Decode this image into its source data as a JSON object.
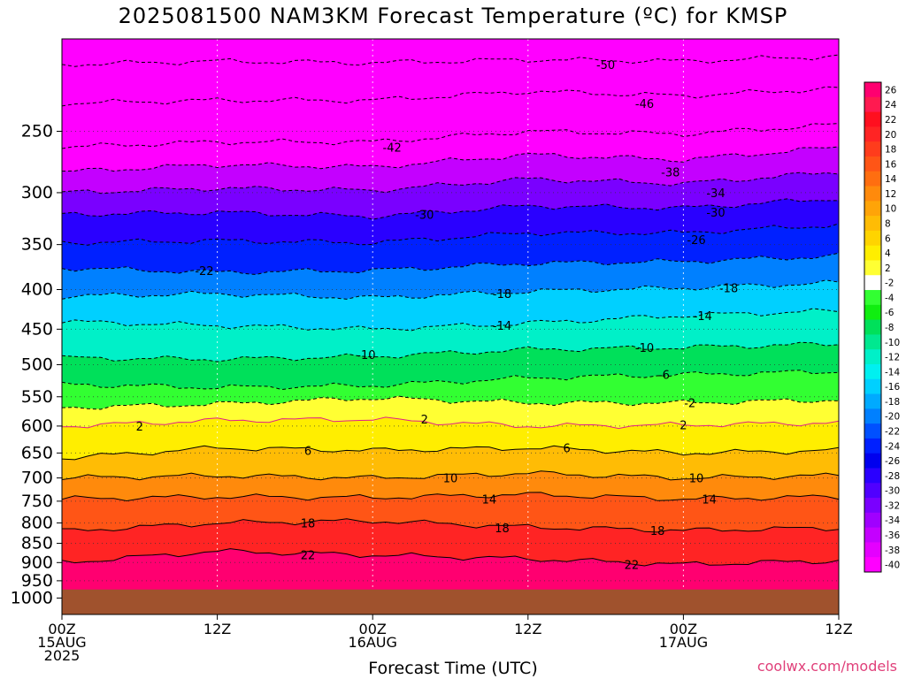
{
  "title": "2025081500 NAM3KM Forecast Temperature (ºC) for KMSP",
  "credit": "coolwx.com/models",
  "chart_data": {
    "type": "heatmap",
    "title": "2025081500 NAM3KM Forecast Temperature (ºC) for KMSP",
    "xlabel": "Forecast Time (UTC)",
    "ylabel": "",
    "y_scale": "log-pressure",
    "ylim": [
      1050,
      190
    ],
    "y_ticks": [
      250,
      300,
      350,
      400,
      450,
      500,
      550,
      600,
      650,
      700,
      750,
      800,
      850,
      900,
      950,
      1000
    ],
    "x_hours_range": [
      0,
      60
    ],
    "x_ticks": [
      {
        "hour": 0,
        "lines": [
          "00Z",
          "15AUG",
          "2025"
        ]
      },
      {
        "hour": 12,
        "lines": [
          "12Z"
        ]
      },
      {
        "hour": 24,
        "lines": [
          "00Z",
          "16AUG"
        ]
      },
      {
        "hour": 36,
        "lines": [
          "12Z"
        ]
      },
      {
        "hour": 48,
        "lines": [
          "00Z",
          "17AUG"
        ]
      },
      {
        "hour": 60,
        "lines": [
          "12Z"
        ]
      }
    ],
    "grid": true,
    "surface_pressure": 975,
    "ground_color": "#a0522d",
    "colorbar": {
      "placement": "right",
      "labels": [
        "26",
        "24",
        "22",
        "20",
        "18",
        "16",
        "14",
        "12",
        "10",
        "8",
        "6",
        "4",
        "2",
        "-2",
        "-4",
        "-6",
        "-8",
        "-10",
        "-12",
        "-14",
        "-16",
        "-18",
        "-20",
        "-22",
        "-24",
        "-26",
        "-28",
        "-30",
        "-32",
        "-34",
        "-36",
        "-38",
        "-40"
      ],
      "colors": [
        "#ff0070",
        "#ff1a50",
        "#ff0f1f",
        "#ff2424",
        "#ff3c1c",
        "#ff5516",
        "#ff6e10",
        "#ff8a0c",
        "#ffa408",
        "#ffbc05",
        "#ffd400",
        "#ffee00",
        "#ffff33",
        "#ffffff",
        "#32ff32",
        "#10ee10",
        "#00e05a",
        "#00e890",
        "#00f0c8",
        "#00f0f0",
        "#00d0ff",
        "#00aaff",
        "#0080ff",
        "#0050ff",
        "#0020ff",
        "#0000ee",
        "#2a00ff",
        "#5000ff",
        "#7a00ff",
        "#a000ff",
        "#c400ff",
        "#e400ff",
        "#ff00ff"
      ]
    },
    "contours": [
      {
        "value": -50,
        "levels": [
          {
            "hour": 0,
            "p": 205
          },
          {
            "hour": 12,
            "p": 203
          },
          {
            "hour": 24,
            "p": 204
          },
          {
            "hour": 36,
            "p": 202
          },
          {
            "hour": 48,
            "p": 203
          },
          {
            "hour": 60,
            "p": 200
          }
        ],
        "label_hour": 42
      },
      {
        "value": -46,
        "levels": [
          {
            "hour": 0,
            "p": 230
          },
          {
            "hour": 12,
            "p": 228
          },
          {
            "hour": 24,
            "p": 228
          },
          {
            "hour": 36,
            "p": 222
          },
          {
            "hour": 48,
            "p": 225
          },
          {
            "hour": 60,
            "p": 220
          }
        ],
        "label_hour": 17
      },
      {
        "value": -42,
        "levels": [
          {
            "hour": 0,
            "p": 262
          },
          {
            "hour": 12,
            "p": 258
          },
          {
            "hour": 24,
            "p": 258
          },
          {
            "hour": 36,
            "p": 250
          },
          {
            "hour": 48,
            "p": 252
          },
          {
            "hour": 60,
            "p": 245
          }
        ],
        "label_hour": 26
      },
      {
        "value": -38,
        "levels": [
          {
            "hour": 0,
            "p": 282
          },
          {
            "hour": 12,
            "p": 276
          },
          {
            "hour": 24,
            "p": 278
          },
          {
            "hour": 36,
            "p": 268
          },
          {
            "hour": 48,
            "p": 272
          },
          {
            "hour": 60,
            "p": 262
          }
        ],
        "label_hour": 8
      },
      {
        "value": -34,
        "levels": [
          {
            "hour": 0,
            "p": 300
          },
          {
            "hour": 12,
            "p": 296
          },
          {
            "hour": 24,
            "p": 298
          },
          {
            "hour": 36,
            "p": 288
          },
          {
            "hour": 48,
            "p": 292
          },
          {
            "hour": 60,
            "p": 282
          }
        ],
        "label_hour": 9.5
      },
      {
        "value": -30,
        "levels": [
          {
            "hour": 0,
            "p": 320
          },
          {
            "hour": 12,
            "p": 318
          },
          {
            "hour": 24,
            "p": 322
          },
          {
            "hour": 36,
            "p": 312
          },
          {
            "hour": 48,
            "p": 314
          },
          {
            "hour": 60,
            "p": 305
          }
        ],
        "label_hour": 9.5
      },
      {
        "value": -26,
        "levels": [
          {
            "hour": 0,
            "p": 348
          },
          {
            "hour": 12,
            "p": 346
          },
          {
            "hour": 24,
            "p": 348
          },
          {
            "hour": 36,
            "p": 338
          },
          {
            "hour": 48,
            "p": 338
          },
          {
            "hour": 60,
            "p": 330
          }
        ],
        "label_hour": 24
      },
      {
        "value": -22,
        "levels": [
          {
            "hour": 0,
            "p": 375
          },
          {
            "hour": 12,
            "p": 380
          },
          {
            "hour": 24,
            "p": 378
          },
          {
            "hour": 36,
            "p": 370
          },
          {
            "hour": 48,
            "p": 368
          },
          {
            "hour": 60,
            "p": 362
          }
        ],
        "label_hour": 36.5
      },
      {
        "value": -18,
        "levels": [
          {
            "hour": 0,
            "p": 408
          },
          {
            "hour": 12,
            "p": 405
          },
          {
            "hour": 24,
            "p": 410
          },
          {
            "hour": 36,
            "p": 402
          },
          {
            "hour": 48,
            "p": 398
          },
          {
            "hour": 60,
            "p": 392
          }
        ],
        "label_hour": 17.5
      },
      {
        "value": -14,
        "levels": [
          {
            "hour": 0,
            "p": 440
          },
          {
            "hour": 12,
            "p": 445
          },
          {
            "hour": 24,
            "p": 450
          },
          {
            "hour": 36,
            "p": 442
          },
          {
            "hour": 48,
            "p": 432
          },
          {
            "hour": 60,
            "p": 426
          }
        ],
        "label_hour": 8.5
      },
      {
        "value": -10,
        "levels": [
          {
            "hour": 0,
            "p": 490
          },
          {
            "hour": 12,
            "p": 492
          },
          {
            "hour": 24,
            "p": 488
          },
          {
            "hour": 36,
            "p": 478
          },
          {
            "hour": 48,
            "p": 475
          },
          {
            "hour": 60,
            "p": 470
          }
        ],
        "label_hour": 7.5
      },
      {
        "value": -6,
        "levels": [
          {
            "hour": 0,
            "p": 530
          },
          {
            "hour": 12,
            "p": 535
          },
          {
            "hour": 24,
            "p": 532
          },
          {
            "hour": 36,
            "p": 520
          },
          {
            "hour": 48,
            "p": 515
          },
          {
            "hour": 60,
            "p": 510
          }
        ],
        "label_hour": 4.5
      },
      {
        "value": -2,
        "levels": [
          {
            "hour": 0,
            "p": 568
          },
          {
            "hour": 12,
            "p": 562
          },
          {
            "hour": 24,
            "p": 552
          },
          {
            "hour": 36,
            "p": 560
          },
          {
            "hour": 48,
            "p": 560
          },
          {
            "hour": 60,
            "p": 555
          }
        ],
        "label_hour": 23.5
      },
      {
        "value": 2,
        "levels": [
          {
            "hour": 0,
            "p": 600
          },
          {
            "hour": 12,
            "p": 590
          },
          {
            "hour": 24,
            "p": 588
          },
          {
            "hour": 36,
            "p": 600
          },
          {
            "hour": 48,
            "p": 598
          },
          {
            "hour": 60,
            "p": 594
          }
        ],
        "label_hour": 3
      },
      {
        "value": 6,
        "levels": [
          {
            "hour": 0,
            "p": 660
          },
          {
            "hour": 12,
            "p": 640
          },
          {
            "hour": 24,
            "p": 645
          },
          {
            "hour": 36,
            "p": 640
          },
          {
            "hour": 48,
            "p": 650
          },
          {
            "hour": 60,
            "p": 645
          }
        ],
        "label_hour": 3
      },
      {
        "value": 10,
        "levels": [
          {
            "hour": 0,
            "p": 700
          },
          {
            "hour": 12,
            "p": 695
          },
          {
            "hour": 24,
            "p": 700
          },
          {
            "hour": 36,
            "p": 690
          },
          {
            "hour": 48,
            "p": 700
          },
          {
            "hour": 60,
            "p": 695
          }
        ],
        "label_hour": 14
      },
      {
        "value": 14,
        "levels": [
          {
            "hour": 0,
            "p": 745
          },
          {
            "hour": 12,
            "p": 740
          },
          {
            "hour": 24,
            "p": 742
          },
          {
            "hour": 36,
            "p": 735
          },
          {
            "hour": 48,
            "p": 745
          },
          {
            "hour": 60,
            "p": 740
          }
        ],
        "label_hour": 15
      },
      {
        "value": 18,
        "levels": [
          {
            "hour": 0,
            "p": 820
          },
          {
            "hour": 12,
            "p": 800
          },
          {
            "hour": 24,
            "p": 795
          },
          {
            "hour": 36,
            "p": 810
          },
          {
            "hour": 48,
            "p": 818
          },
          {
            "hour": 60,
            "p": 812
          }
        ],
        "label_hour": 6
      },
      {
        "value": 22,
        "levels": [
          {
            "hour": 0,
            "p": 900
          },
          {
            "hour": 12,
            "p": 870
          },
          {
            "hour": 24,
            "p": 880
          },
          {
            "hour": 36,
            "p": 890
          },
          {
            "hour": 48,
            "p": 905
          },
          {
            "hour": 60,
            "p": 895
          }
        ],
        "label_hour": 19
      }
    ],
    "extra_labels": [
      {
        "text": "-50",
        "hour": 42,
        "p": 205
      },
      {
        "text": "-46",
        "hour": 45,
        "p": 230
      },
      {
        "text": "-42",
        "hour": 25.5,
        "p": 262
      },
      {
        "text": "-38",
        "hour": 47,
        "p": 282
      },
      {
        "text": "-34",
        "hour": 50.5,
        "p": 300
      },
      {
        "text": "-30",
        "hour": 28,
        "p": 320
      },
      {
        "text": "-30",
        "hour": 50.5,
        "p": 318
      },
      {
        "text": "-26",
        "hour": 49,
        "p": 345
      },
      {
        "text": "-22",
        "hour": 11,
        "p": 378
      },
      {
        "text": "-18",
        "hour": 34,
        "p": 405
      },
      {
        "text": "-18",
        "hour": 51.5,
        "p": 398
      },
      {
        "text": "-14",
        "hour": 34,
        "p": 445
      },
      {
        "text": "-14",
        "hour": 49.5,
        "p": 432
      },
      {
        "text": "-10",
        "hour": 23.5,
        "p": 485
      },
      {
        "text": "-10",
        "hour": 45,
        "p": 475
      },
      {
        "text": "-6",
        "hour": 46.5,
        "p": 515
      },
      {
        "text": "-2",
        "hour": 48.5,
        "p": 560
      },
      {
        "text": "2",
        "hour": 6,
        "p": 600
      },
      {
        "text": "2",
        "hour": 28,
        "p": 588
      },
      {
        "text": "2",
        "hour": 48,
        "p": 598
      },
      {
        "text": "6",
        "hour": 19,
        "p": 645
      },
      {
        "text": "6",
        "hour": 39,
        "p": 640
      },
      {
        "text": "10",
        "hour": 30,
        "p": 700
      },
      {
        "text": "10",
        "hour": 49,
        "p": 700
      },
      {
        "text": "14",
        "hour": 33,
        "p": 745
      },
      {
        "text": "14",
        "hour": 50,
        "p": 745
      },
      {
        "text": "18",
        "hour": 19,
        "p": 800
      },
      {
        "text": "18",
        "hour": 34,
        "p": 812
      },
      {
        "text": "18",
        "hour": 46,
        "p": 818
      },
      {
        "text": "22",
        "hour": 19,
        "p": 880
      },
      {
        "text": "22",
        "hour": 44,
        "p": 905
      }
    ]
  }
}
